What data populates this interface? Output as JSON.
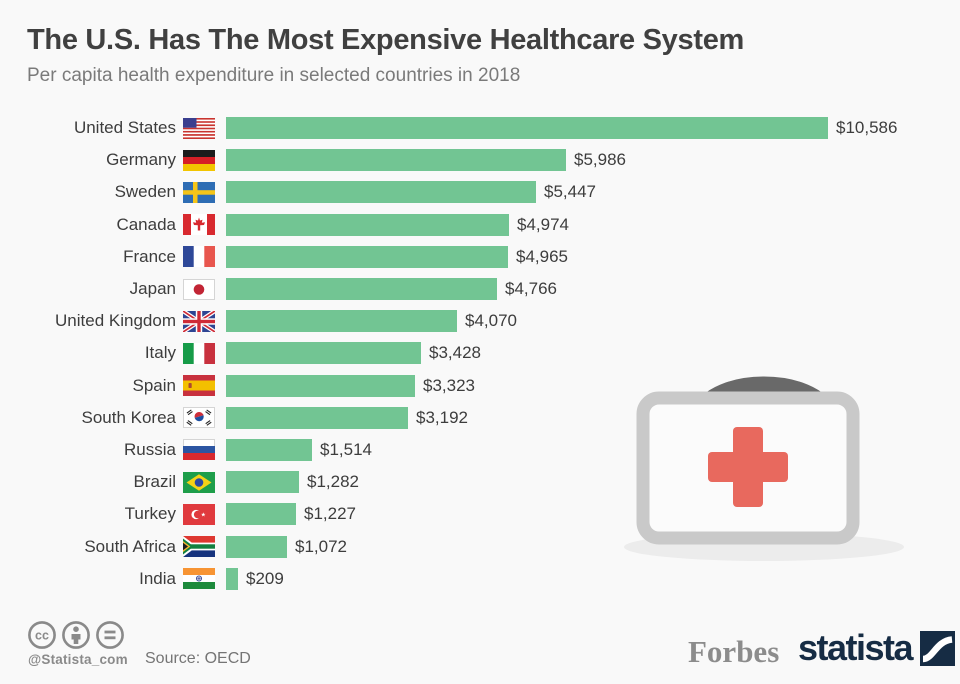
{
  "header": {
    "title": "The U.S. Has The Most Expensive Healthcare System",
    "subtitle": "Per capita health expenditure in selected countries in 2018"
  },
  "chart_data": {
    "type": "bar",
    "orientation": "horizontal",
    "title": "The U.S. Has The Most Expensive Healthcare System",
    "subtitle": "Per capita health expenditure in selected countries in 2018",
    "unit": "USD per capita",
    "categories": [
      "United States",
      "Germany",
      "Sweden",
      "Canada",
      "France",
      "Japan",
      "United Kingdom",
      "Italy",
      "Spain",
      "South Korea",
      "Russia",
      "Brazil",
      "Turkey",
      "South Africa",
      "India"
    ],
    "values": [
      10586,
      5986,
      5447,
      4974,
      4965,
      4766,
      4070,
      3428,
      3323,
      3192,
      1514,
      1282,
      1227,
      1072,
      209
    ],
    "value_labels": [
      "$10,586",
      "$5,986",
      "$5,447",
      "$4,974",
      "$4,965",
      "$4,766",
      "$4,070",
      "$3,428",
      "$3,323",
      "$3,192",
      "$1,514",
      "$1,282",
      "$1,227",
      "$1,072",
      "$209"
    ],
    "flags": [
      "us",
      "de",
      "se",
      "ca",
      "fr",
      "jp",
      "gb",
      "it",
      "es",
      "kr",
      "ru",
      "br",
      "tr",
      "za",
      "in"
    ],
    "bar_color": "#72c593",
    "max_value": 10586,
    "xlim": [
      0,
      10586
    ],
    "grid": false,
    "legend": false
  },
  "illustration": {
    "name": "first-aid-kit",
    "cross_color": "#e8695e",
    "case_color": "#c9c9c9"
  },
  "footer": {
    "license_icons": [
      "creative-commons",
      "attribution",
      "no-derivatives"
    ],
    "cc_label": "cc",
    "handle": "@Statista_com",
    "source": "Source: OECD",
    "brand_left": "Forbes",
    "brand_right": "statista",
    "brand_right_color": "#162c44"
  }
}
